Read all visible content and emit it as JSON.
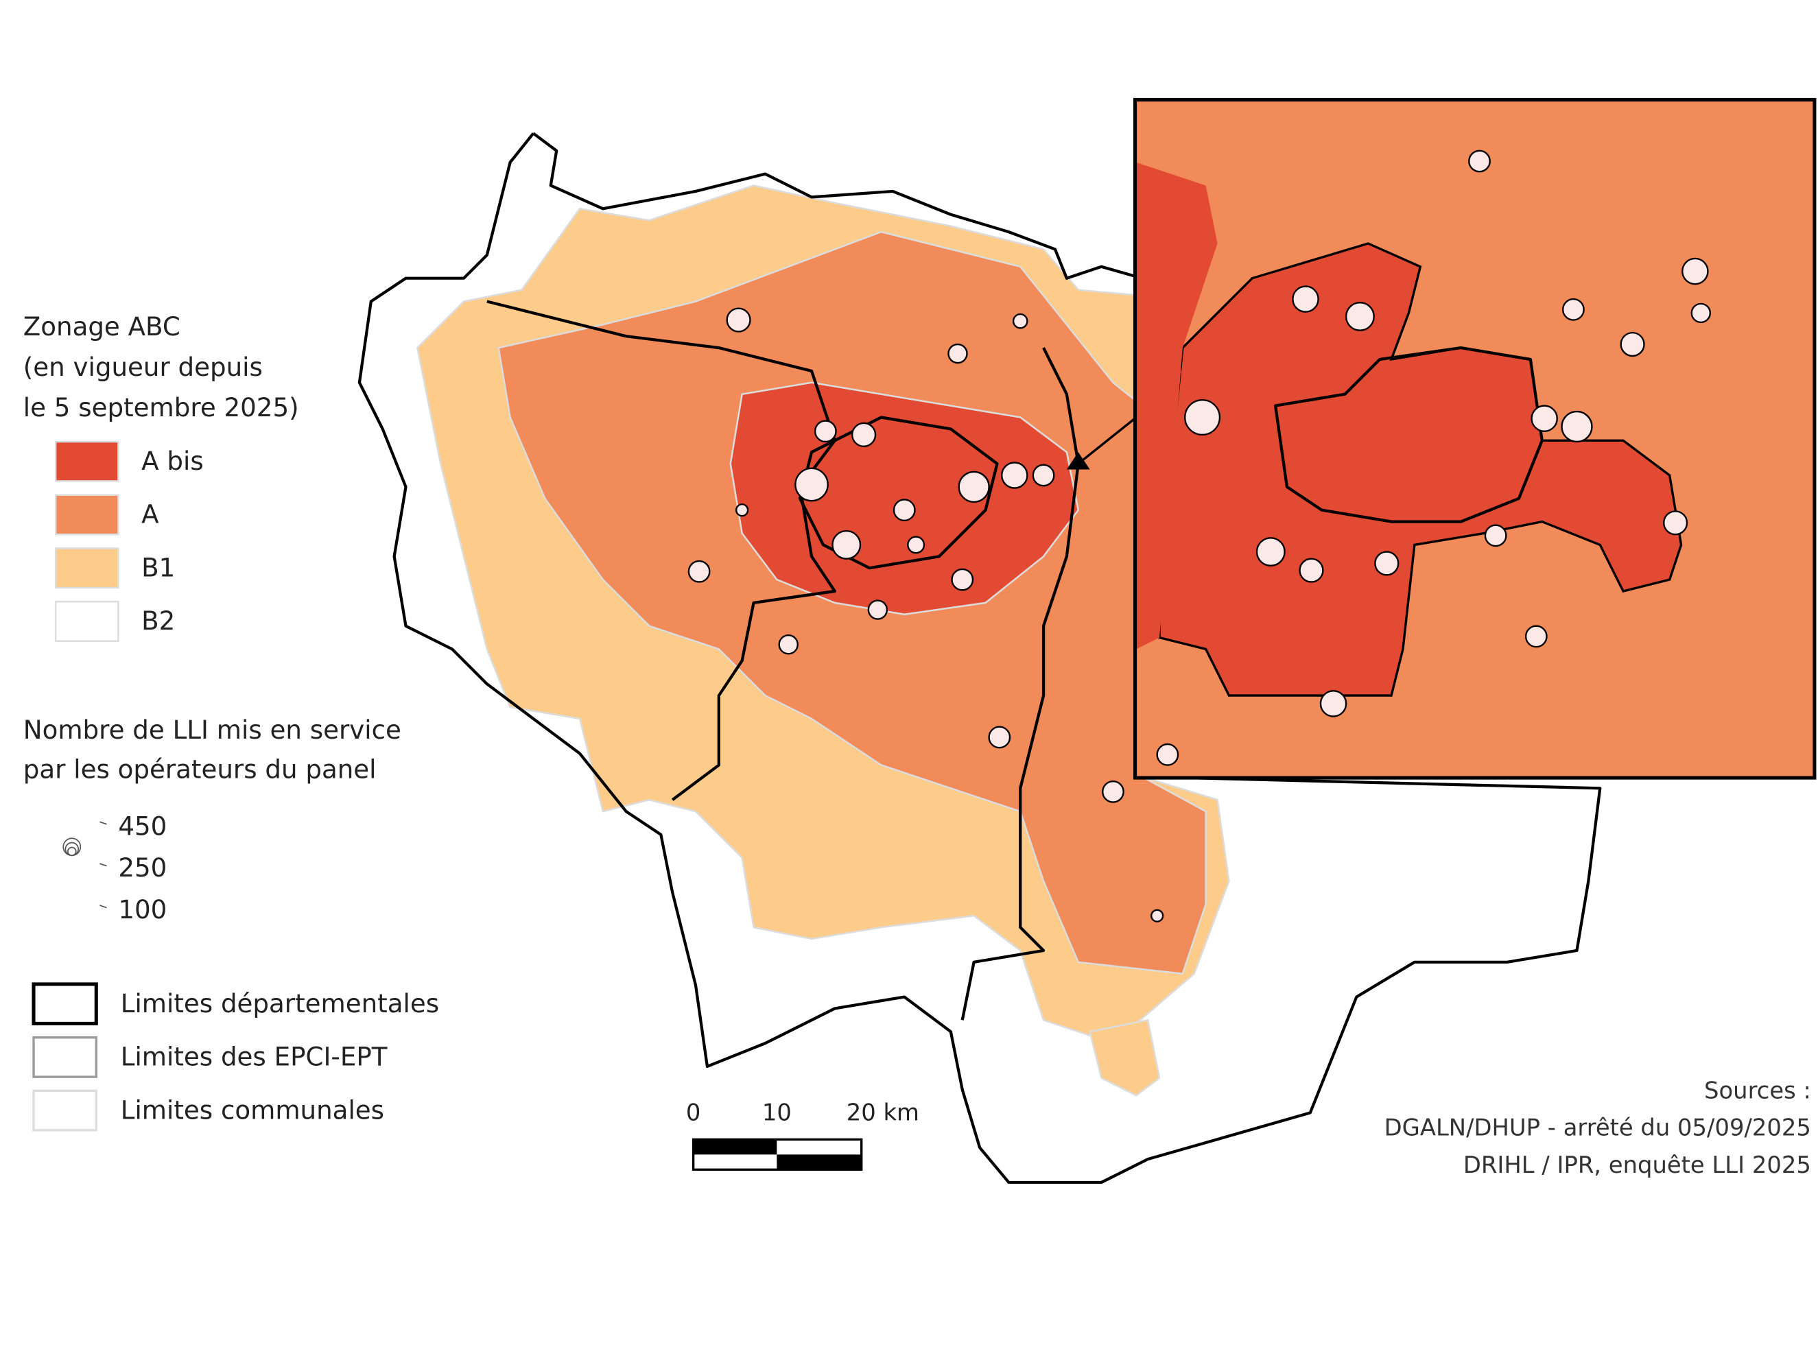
{
  "legend": {
    "zonage_title": [
      "Zonage ABC",
      "(en vigueur depuis",
      "le 5 septembre 2025)"
    ],
    "zones": [
      {
        "label": "A bis",
        "color": "#e34a33"
      },
      {
        "label": "A",
        "color": "#f28b5a"
      },
      {
        "label": "B1",
        "color": "#fdcc8a"
      },
      {
        "label": "B2",
        "color": "#ffffff"
      }
    ],
    "circles_title": [
      "Nombre de LLI mis en service",
      "par les opérateurs du panel"
    ],
    "circle_sizes": [
      450,
      250,
      100
    ],
    "limits": [
      {
        "label": "Limites départementales",
        "color": "#000000"
      },
      {
        "label": "Limites des EPCI-EPT",
        "color": "#9a9a9a"
      },
      {
        "label": "Limites communales",
        "color": "#dddddd"
      }
    ]
  },
  "scale_bar": {
    "labels": [
      "0",
      "10",
      "20 km"
    ]
  },
  "sources": [
    "Sources :",
    "DGALN/DHUP - arrêté du 05/09/2025",
    "DRIHL / IPR, enquête LLI 2025"
  ]
}
